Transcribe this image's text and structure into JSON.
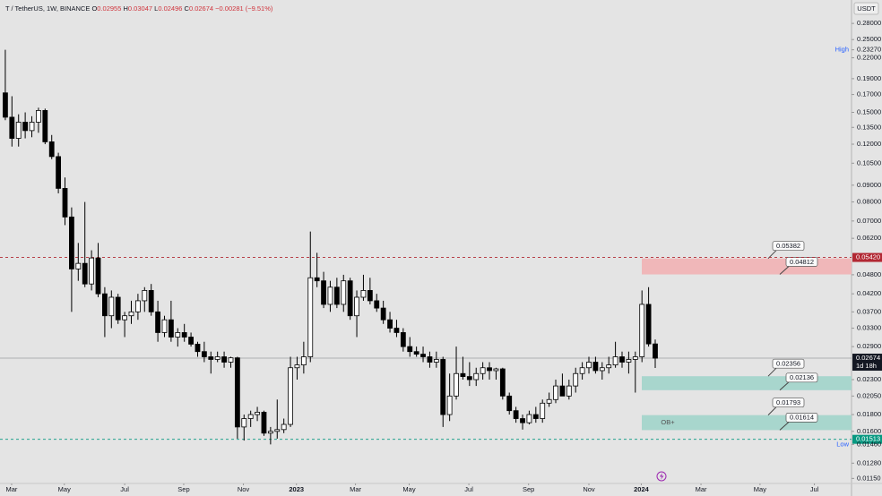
{
  "chart_data": {
    "type": "candlestick",
    "title": "T / TetherUS, 1W, BINANCE",
    "ohlc_legend": [
      [
        "O",
        "0.02955"
      ],
      [
        "H",
        "0.03047"
      ],
      [
        "L",
        "0.02496"
      ],
      [
        "C",
        "0.02674"
      ]
    ],
    "change_text": "−0.00281 (−9.51%)",
    "currency": "USDT",
    "log_scale": true,
    "grid": false,
    "up_color": "#ffffff",
    "down_color": "#000000",
    "ylim": [
      0.0111,
      0.33
    ],
    "yticks": [
      {
        "value": 0.28,
        "label": "0.28000"
      },
      {
        "value": 0.25,
        "label": "0.25000"
      },
      {
        "value": 0.22,
        "label": "0.22000"
      },
      {
        "value": 0.19,
        "label": "0.19000"
      },
      {
        "value": 0.17,
        "label": "0.17000"
      },
      {
        "value": 0.15,
        "label": "0.15000"
      },
      {
        "value": 0.135,
        "label": "0.13500"
      },
      {
        "value": 0.12,
        "label": "0.12000"
      },
      {
        "value": 0.105,
        "label": "0.10500"
      },
      {
        "value": 0.09,
        "label": "0.09000"
      },
      {
        "value": 0.08,
        "label": "0.08000"
      },
      {
        "value": 0.07,
        "label": "0.07000"
      },
      {
        "value": 0.062,
        "label": "0.06200"
      },
      {
        "value": 0.048,
        "label": "0.04800"
      },
      {
        "value": 0.042,
        "label": "0.04200"
      },
      {
        "value": 0.037,
        "label": "0.03700"
      },
      {
        "value": 0.033,
        "label": "0.03300"
      },
      {
        "value": 0.029,
        "label": "0.02900"
      },
      {
        "value": 0.023,
        "label": "0.02300"
      },
      {
        "value": 0.0205,
        "label": "0.02050"
      },
      {
        "value": 0.018,
        "label": "0.01800"
      },
      {
        "value": 0.016,
        "label": "0.01600"
      },
      {
        "value": 0.0128,
        "label": "0.01280"
      },
      {
        "value": 0.0115,
        "label": "0.01150"
      }
    ],
    "xlim": [
      -0.8,
      127.6
    ],
    "xticks": [
      {
        "value": 0.95,
        "label": "Mar"
      },
      {
        "value": 8.9,
        "label": "May"
      },
      {
        "value": 18,
        "label": "Jul"
      },
      {
        "value": 26.9,
        "label": "Sep"
      },
      {
        "value": 35.9,
        "label": "Nov"
      },
      {
        "value": 43.9,
        "label": "2023"
      },
      {
        "value": 52.8,
        "label": "Mar"
      },
      {
        "value": 60.9,
        "label": "May"
      },
      {
        "value": 69.9,
        "label": "Jul"
      },
      {
        "value": 78.9,
        "label": "Sep"
      },
      {
        "value": 88,
        "label": "Nov"
      },
      {
        "value": 95.9,
        "label": "2024"
      },
      {
        "value": 104.9,
        "label": "Mar"
      },
      {
        "value": 113.8,
        "label": "May"
      },
      {
        "value": 122,
        "label": "Jul"
      }
    ],
    "ohlc": [
      [
        0.172,
        0.2327,
        0.142,
        0.145
      ],
      [
        0.145,
        0.168,
        0.118,
        0.125
      ],
      [
        0.125,
        0.148,
        0.118,
        0.14
      ],
      [
        0.14,
        0.15,
        0.125,
        0.132
      ],
      [
        0.132,
        0.146,
        0.126,
        0.14
      ],
      [
        0.14,
        0.155,
        0.13,
        0.152
      ],
      [
        0.152,
        0.154,
        0.12,
        0.122
      ],
      [
        0.122,
        0.128,
        0.108,
        0.11
      ],
      [
        0.11,
        0.113,
        0.085,
        0.088
      ],
      [
        0.088,
        0.095,
        0.068,
        0.072
      ],
      [
        0.072,
        0.077,
        0.037,
        0.05
      ],
      [
        0.05,
        0.06,
        0.046,
        0.052
      ],
      [
        0.052,
        0.08,
        0.044,
        0.045
      ],
      [
        0.045,
        0.057,
        0.043,
        0.054
      ],
      [
        0.054,
        0.06,
        0.041,
        0.042
      ],
      [
        0.042,
        0.044,
        0.031,
        0.036
      ],
      [
        0.036,
        0.043,
        0.033,
        0.041
      ],
      [
        0.041,
        0.042,
        0.034,
        0.035
      ],
      [
        0.035,
        0.037,
        0.031,
        0.036
      ],
      [
        0.036,
        0.04,
        0.034,
        0.037
      ],
      [
        0.037,
        0.042,
        0.035,
        0.04
      ],
      [
        0.04,
        0.044,
        0.037,
        0.043
      ],
      [
        0.043,
        0.045,
        0.036,
        0.037
      ],
      [
        0.037,
        0.04,
        0.03,
        0.032
      ],
      [
        0.032,
        0.036,
        0.031,
        0.035
      ],
      [
        0.035,
        0.04,
        0.03,
        0.031
      ],
      [
        0.031,
        0.033,
        0.029,
        0.032
      ],
      [
        0.032,
        0.034,
        0.03,
        0.031
      ],
      [
        0.031,
        0.032,
        0.029,
        0.0295
      ],
      [
        0.0295,
        0.03,
        0.027,
        0.028
      ],
      [
        0.028,
        0.03,
        0.026,
        0.027
      ],
      [
        0.027,
        0.028,
        0.024,
        0.0265
      ],
      [
        0.0265,
        0.028,
        0.026,
        0.027
      ],
      [
        0.027,
        0.028,
        0.025,
        0.026
      ],
      [
        0.026,
        0.027,
        0.025,
        0.0268
      ],
      [
        0.0268,
        0.027,
        0.0152,
        0.0165
      ],
      [
        0.0165,
        0.018,
        0.015,
        0.0175
      ],
      [
        0.0175,
        0.0185,
        0.0165,
        0.018
      ],
      [
        0.018,
        0.019,
        0.0172,
        0.0183
      ],
      [
        0.0183,
        0.0185,
        0.0155,
        0.0158
      ],
      [
        0.0158,
        0.0165,
        0.0146,
        0.016
      ],
      [
        0.016,
        0.02,
        0.0152,
        0.0162
      ],
      [
        0.0162,
        0.0175,
        0.0158,
        0.0168
      ],
      [
        0.0168,
        0.027,
        0.0165,
        0.025
      ],
      [
        0.025,
        0.027,
        0.023,
        0.0255
      ],
      [
        0.0255,
        0.03,
        0.024,
        0.027
      ],
      [
        0.027,
        0.065,
        0.026,
        0.047
      ],
      [
        0.047,
        0.056,
        0.044,
        0.046
      ],
      [
        0.046,
        0.049,
        0.038,
        0.039
      ],
      [
        0.039,
        0.046,
        0.037,
        0.044
      ],
      [
        0.044,
        0.047,
        0.038,
        0.039
      ],
      [
        0.039,
        0.048,
        0.037,
        0.046
      ],
      [
        0.046,
        0.047,
        0.035,
        0.036
      ],
      [
        0.036,
        0.043,
        0.031,
        0.041
      ],
      [
        0.041,
        0.048,
        0.04,
        0.043
      ],
      [
        0.043,
        0.047,
        0.039,
        0.04
      ],
      [
        0.04,
        0.042,
        0.037,
        0.038
      ],
      [
        0.038,
        0.04,
        0.034,
        0.035
      ],
      [
        0.035,
        0.037,
        0.032,
        0.033
      ],
      [
        0.033,
        0.035,
        0.031,
        0.032
      ],
      [
        0.032,
        0.033,
        0.028,
        0.029
      ],
      [
        0.029,
        0.031,
        0.027,
        0.028
      ],
      [
        0.028,
        0.029,
        0.027,
        0.0275
      ],
      [
        0.0275,
        0.029,
        0.026,
        0.027
      ],
      [
        0.027,
        0.028,
        0.025,
        0.026
      ],
      [
        0.026,
        0.028,
        0.025,
        0.0265
      ],
      [
        0.0265,
        0.027,
        0.0165,
        0.018
      ],
      [
        0.018,
        0.024,
        0.0172,
        0.0205
      ],
      [
        0.0205,
        0.029,
        0.02,
        0.024
      ],
      [
        0.024,
        0.027,
        0.023,
        0.0235
      ],
      [
        0.0235,
        0.026,
        0.022,
        0.023
      ],
      [
        0.023,
        0.025,
        0.022,
        0.024
      ],
      [
        0.024,
        0.026,
        0.023,
        0.025
      ],
      [
        0.025,
        0.026,
        0.023,
        0.0245
      ],
      [
        0.0245,
        0.025,
        0.023,
        0.0248
      ],
      [
        0.0248,
        0.025,
        0.02,
        0.0205
      ],
      [
        0.0205,
        0.021,
        0.018,
        0.0185
      ],
      [
        0.0185,
        0.019,
        0.017,
        0.0175
      ],
      [
        0.0175,
        0.018,
        0.0162,
        0.017
      ],
      [
        0.017,
        0.0185,
        0.0168,
        0.018
      ],
      [
        0.018,
        0.019,
        0.017,
        0.0175
      ],
      [
        0.0175,
        0.02,
        0.017,
        0.0195
      ],
      [
        0.0195,
        0.021,
        0.019,
        0.02
      ],
      [
        0.02,
        0.023,
        0.0195,
        0.022
      ],
      [
        0.022,
        0.024,
        0.021,
        0.0205
      ],
      [
        0.0205,
        0.023,
        0.02,
        0.022
      ],
      [
        0.022,
        0.025,
        0.021,
        0.024
      ],
      [
        0.024,
        0.026,
        0.023,
        0.025
      ],
      [
        0.025,
        0.027,
        0.024,
        0.026
      ],
      [
        0.026,
        0.027,
        0.024,
        0.0245
      ],
      [
        0.0245,
        0.026,
        0.023,
        0.025
      ],
      [
        0.025,
        0.027,
        0.024,
        0.0255
      ],
      [
        0.0255,
        0.03,
        0.025,
        0.027
      ],
      [
        0.027,
        0.028,
        0.025,
        0.026
      ],
      [
        0.026,
        0.028,
        0.024,
        0.0265
      ],
      [
        0.0265,
        0.028,
        0.021,
        0.027
      ],
      [
        0.027,
        0.043,
        0.026,
        0.039
      ],
      [
        0.039,
        0.044,
        0.029,
        0.02955
      ],
      [
        0.02955,
        0.03047,
        0.02496,
        0.02674
      ]
    ],
    "levels": [
      {
        "value": 0.0542,
        "label": "0.05420",
        "color": "#b22833",
        "style": "dashed"
      },
      {
        "value": 0.01513,
        "color": "#089981",
        "style": "dashed"
      },
      {
        "value": 0.02674,
        "color": "#131722",
        "style": "solid",
        "countdown": "1d 18h"
      }
    ],
    "zones": [
      {
        "top": 0.05382,
        "bottom": 0.04812,
        "color": "#f0b7b9"
      },
      {
        "top": 0.02356,
        "bottom": 0.02136,
        "color": "#a8d6cd"
      },
      {
        "top": 0.01793,
        "bottom": 0.01614,
        "color": "#a8d6cd",
        "label": "OB+"
      }
    ],
    "extremes": [
      {
        "text": "High",
        "value": 0.2327,
        "label": "0.23270"
      },
      {
        "text": "Low",
        "value": 0.0146,
        "label": "0.01460"
      }
    ]
  }
}
